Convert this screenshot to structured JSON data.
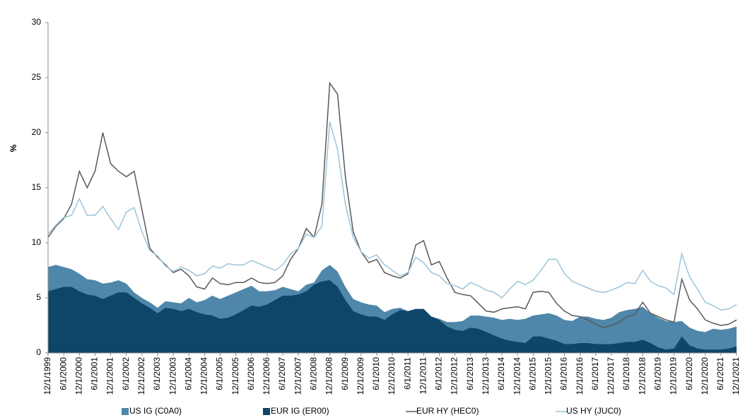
{
  "chart_data": {
    "type": "area_line",
    "y_label": "%",
    "x": [
      "12/1/1999",
      "3/1/2000",
      "6/1/2000",
      "9/1/2000",
      "12/1/2000",
      "3/1/2001",
      "6/1/2001",
      "9/1/2001",
      "12/1/2001",
      "3/1/2002",
      "6/1/2002",
      "9/1/2002",
      "12/1/2002",
      "3/1/2003",
      "6/1/2003",
      "9/1/2003",
      "12/1/2003",
      "3/1/2004",
      "6/1/2004",
      "9/1/2004",
      "12/1/2004",
      "3/1/2005",
      "6/1/2005",
      "9/1/2005",
      "12/1/2005",
      "3/1/2006",
      "6/1/2006",
      "9/1/2006",
      "12/1/2006",
      "3/1/2007",
      "6/1/2007",
      "9/1/2007",
      "12/1/2007",
      "3/1/2008",
      "6/1/2008",
      "9/1/2008",
      "12/1/2008",
      "3/1/2009",
      "6/1/2009",
      "9/1/2009",
      "12/1/2009",
      "3/1/2010",
      "6/1/2010",
      "9/1/2010",
      "12/1/2010",
      "3/1/2011",
      "6/1/2011",
      "9/1/2011",
      "12/1/2011",
      "3/1/2012",
      "6/1/2012",
      "9/1/2012",
      "12/1/2012",
      "3/1/2013",
      "6/1/2013",
      "9/1/2013",
      "12/1/2013",
      "3/1/2014",
      "6/1/2014",
      "9/1/2014",
      "12/1/2014",
      "3/1/2015",
      "6/1/2015",
      "9/1/2015",
      "12/1/2015",
      "3/1/2016",
      "6/1/2016",
      "9/1/2016",
      "12/1/2016",
      "3/1/2017",
      "6/1/2017",
      "9/1/2017",
      "12/1/2017",
      "3/1/2018",
      "6/1/2018",
      "9/1/2018",
      "12/1/2018",
      "3/1/2019",
      "6/1/2019",
      "9/1/2019",
      "12/1/2019",
      "3/1/2020",
      "6/1/2020",
      "9/1/2020",
      "12/1/2020",
      "3/1/2021",
      "6/1/2021",
      "9/1/2021",
      "12/1/2021"
    ],
    "xlim": [
      "12/1/1999",
      "12/1/2021"
    ],
    "xticks": [
      "12/1/1999",
      "6/1/2000",
      "12/1/2000",
      "6/1/2001",
      "12/1/2001",
      "6/1/2002",
      "12/1/2002",
      "6/1/2003",
      "12/1/2003",
      "6/1/2004",
      "12/1/2004",
      "6/1/2005",
      "12/1/2005",
      "6/1/2006",
      "12/1/2006",
      "6/1/2007",
      "12/1/2007",
      "6/1/2008",
      "12/1/2008",
      "6/1/2009",
      "12/1/2009",
      "6/1/2010",
      "12/1/2010",
      "6/1/2011",
      "12/1/2011",
      "6/1/2012",
      "12/1/2012",
      "6/1/2013",
      "12/1/2013",
      "6/1/2014",
      "12/1/2014",
      "6/1/2015",
      "12/1/2015",
      "6/1/2016",
      "12/1/2016",
      "6/1/2017",
      "12/1/2017",
      "6/1/2018",
      "12/1/2018",
      "6/1/2019",
      "12/1/2019",
      "6/1/2020",
      "12/1/2020",
      "6/1/2021",
      "12/1/2021"
    ],
    "ylim": [
      0,
      30
    ],
    "yticks": [
      0,
      5,
      10,
      15,
      20,
      25,
      30
    ],
    "grid": false,
    "series": [
      {
        "name": "US IG (C0A0)",
        "kind": "area",
        "color": "#4f87aa",
        "values": [
          7.8,
          8.0,
          7.8,
          7.6,
          7.2,
          6.7,
          6.6,
          6.3,
          6.4,
          6.6,
          6.3,
          5.5,
          5.0,
          4.6,
          4.1,
          4.7,
          4.6,
          4.5,
          5.0,
          4.6,
          4.8,
          5.2,
          4.9,
          5.2,
          5.5,
          5.8,
          6.1,
          5.6,
          5.6,
          5.7,
          6.0,
          5.8,
          5.6,
          6.2,
          6.4,
          7.5,
          8.0,
          7.4,
          6.0,
          4.9,
          4.6,
          4.4,
          4.3,
          3.7,
          4.0,
          4.1,
          3.8,
          3.7,
          3.6,
          3.3,
          3.1,
          2.8,
          2.8,
          2.9,
          3.4,
          3.4,
          3.3,
          3.2,
          3.0,
          3.1,
          3.0,
          3.1,
          3.4,
          3.5,
          3.6,
          3.4,
          3.0,
          2.9,
          3.3,
          3.3,
          3.1,
          3.0,
          3.2,
          3.7,
          3.9,
          4.0,
          4.2,
          3.6,
          3.2,
          2.9,
          2.8,
          2.9,
          2.3,
          2.0,
          1.9,
          2.2,
          2.1,
          2.2,
          2.4
        ]
      },
      {
        "name": "EUR IG (ER00)",
        "kind": "area",
        "color": "#0d4668",
        "values": [
          5.6,
          5.8,
          6.0,
          6.0,
          5.6,
          5.3,
          5.2,
          4.9,
          5.2,
          5.5,
          5.5,
          5.0,
          4.5,
          4.1,
          3.6,
          4.1,
          4.0,
          3.8,
          4.0,
          3.7,
          3.5,
          3.4,
          3.1,
          3.2,
          3.5,
          3.9,
          4.3,
          4.2,
          4.4,
          4.8,
          5.2,
          5.2,
          5.3,
          5.6,
          6.2,
          6.5,
          6.6,
          6.0,
          4.8,
          3.8,
          3.5,
          3.3,
          3.3,
          3.0,
          3.5,
          3.9,
          3.8,
          4.0,
          4.0,
          3.3,
          3.0,
          2.4,
          2.1,
          2.0,
          2.3,
          2.2,
          1.9,
          1.6,
          1.3,
          1.1,
          1.0,
          0.9,
          1.5,
          1.5,
          1.3,
          1.1,
          0.8,
          0.8,
          0.9,
          0.9,
          0.8,
          0.8,
          0.8,
          0.9,
          1.0,
          1.0,
          1.2,
          0.9,
          0.5,
          0.3,
          0.4,
          1.5,
          0.7,
          0.4,
          0.3,
          0.3,
          0.3,
          0.4,
          0.6
        ]
      },
      {
        "name": "EUR HY (HEC0)",
        "kind": "line",
        "color": "#595959",
        "values": [
          10.5,
          11.5,
          12.2,
          13.5,
          16.5,
          15.0,
          16.5,
          20.0,
          17.2,
          16.5,
          16.0,
          16.5,
          13.0,
          9.5,
          8.7,
          8.0,
          7.3,
          7.6,
          7.0,
          6.0,
          5.8,
          6.8,
          6.3,
          6.2,
          6.4,
          6.4,
          6.8,
          6.4,
          6.3,
          6.4,
          7.0,
          8.5,
          9.5,
          11.3,
          10.5,
          13.5,
          24.5,
          23.5,
          16.0,
          11.0,
          9.2,
          8.2,
          8.5,
          7.3,
          7.0,
          6.8,
          7.2,
          9.8,
          10.2,
          8.0,
          8.3,
          6.8,
          5.5,
          5.3,
          5.2,
          4.5,
          3.8,
          3.7,
          4.0,
          4.1,
          4.2,
          4.0,
          5.5,
          5.6,
          5.5,
          4.5,
          3.8,
          3.4,
          3.3,
          3.0,
          2.6,
          2.3,
          2.5,
          2.8,
          3.3,
          3.5,
          4.6,
          3.6,
          3.3,
          3.0,
          2.8,
          6.7,
          4.8,
          4.0,
          3.0,
          2.7,
          2.5,
          2.6,
          3.0
        ]
      },
      {
        "name": "US HY (JUC0)",
        "kind": "line",
        "color": "#9cc4da",
        "values": [
          10.8,
          11.6,
          12.3,
          12.5,
          14.0,
          12.5,
          12.5,
          13.3,
          12.2,
          11.2,
          12.8,
          13.2,
          11.0,
          9.3,
          8.8,
          7.9,
          7.4,
          7.8,
          7.5,
          7.0,
          7.2,
          7.9,
          7.7,
          8.1,
          8.0,
          8.0,
          8.4,
          8.1,
          7.8,
          7.5,
          8.0,
          9.0,
          9.5,
          10.8,
          10.5,
          11.5,
          21.0,
          18.5,
          13.5,
          10.5,
          9.2,
          8.6,
          8.9,
          8.0,
          7.5,
          7.0,
          7.3,
          8.7,
          8.2,
          7.3,
          7.0,
          6.3,
          6.1,
          5.8,
          6.4,
          6.1,
          5.7,
          5.5,
          5.0,
          5.8,
          6.5,
          6.2,
          6.6,
          7.5,
          8.5,
          8.5,
          7.2,
          6.5,
          6.2,
          5.9,
          5.6,
          5.5,
          5.7,
          6.0,
          6.4,
          6.3,
          7.5,
          6.5,
          6.1,
          5.9,
          5.3,
          9.0,
          6.9,
          5.8,
          4.6,
          4.3,
          3.9,
          4.0,
          4.4
        ]
      }
    ]
  }
}
